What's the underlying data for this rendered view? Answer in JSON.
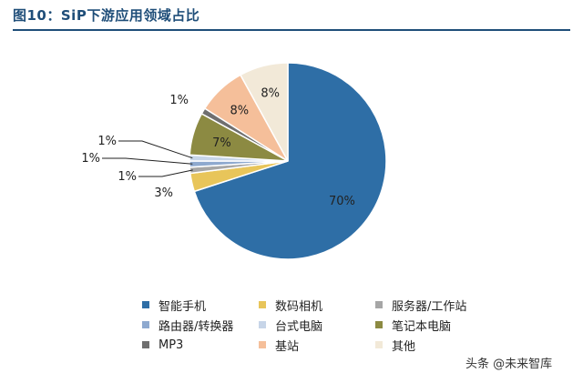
{
  "header": {
    "title": "图10：SiP下游应用领域占比"
  },
  "chart_data": {
    "type": "pie",
    "categories": [
      "智能手机",
      "数码相机",
      "服务器/工作站",
      "路由器/转换器",
      "台式电脑",
      "笔记本电脑",
      "MP3",
      "基站",
      "其他"
    ],
    "values": [
      70,
      3,
      1,
      1,
      1,
      7,
      1,
      8,
      8
    ],
    "data_labels": [
      "70%",
      "3%",
      "1%",
      "1%",
      "1%",
      "7%",
      "1%",
      "8%",
      "8%"
    ],
    "colors": [
      "#2e6ea6",
      "#e8c55a",
      "#a6a6a6",
      "#8ea9cf",
      "#c7d5e8",
      "#8c8a42",
      "#6f6f6f",
      "#f5bf9a",
      "#f2e9d8"
    ],
    "legend_placement": "bottom"
  },
  "watermark": {
    "text": "头条 @未来智库"
  }
}
